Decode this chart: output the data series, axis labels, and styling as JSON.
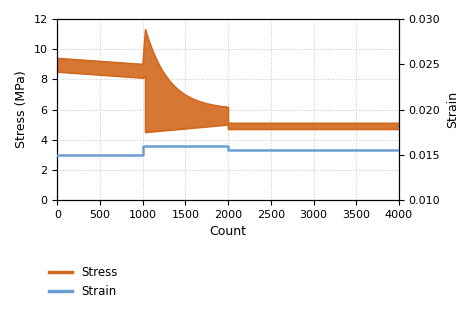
{
  "title": "",
  "xlabel": "Count",
  "ylabel_left": "Stress (MPa)",
  "ylabel_right": "Strain",
  "xlim": [
    0,
    4000
  ],
  "ylim_left": [
    0,
    12
  ],
  "ylim_right": [
    0.01,
    0.03
  ],
  "xticks": [
    0,
    500,
    1000,
    1500,
    2000,
    2500,
    3000,
    3500,
    4000
  ],
  "yticks_left": [
    0,
    2,
    4,
    6,
    8,
    10,
    12
  ],
  "yticks_right": [
    0.01,
    0.015,
    0.02,
    0.025,
    0.03
  ],
  "stress_color": "#D2691E",
  "strain_color": "#6B9FD4",
  "background_color": "#ffffff",
  "grid_color": "#c8c8c8",
  "legend_stress": "Stress",
  "legend_strain": "Strain",
  "phase1_x_end": 1000,
  "phase2_x_end": 2000,
  "phase3_x_end": 4000,
  "stress_phase1_upper_start": 9.4,
  "stress_phase1_upper_end": 9.0,
  "stress_phase1_lower_start": 8.5,
  "stress_phase1_lower_end": 8.1,
  "stress_spike_x": 1030,
  "stress_spike_upper": 11.3,
  "stress_spike_lower": 8.2,
  "stress_phase2_upper_end": 6.0,
  "stress_phase2_lower_start": 4.5,
  "stress_phase2_lower_end": 5.0,
  "stress_phase3_upper": 5.1,
  "stress_phase3_lower": 4.7,
  "strain_phase1": 0.015,
  "strain_phase2": 0.016,
  "strain_phase3": 0.0155
}
